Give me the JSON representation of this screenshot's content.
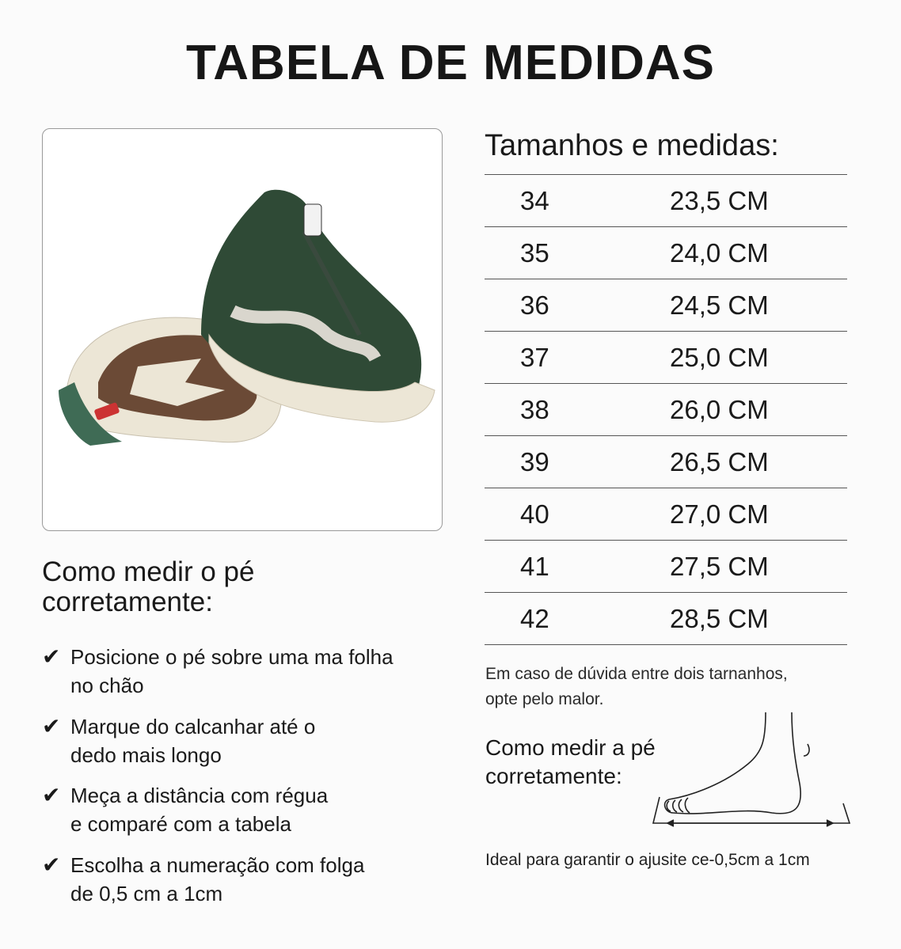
{
  "title": "TABELA DE MEDIDAS",
  "howto": {
    "title_line1": "Como medir o pé",
    "title_line2": "corretamente:",
    "steps": [
      {
        "line1": "Posicione o pé sobre uma ma folha",
        "line2": "no chão"
      },
      {
        "line1": "Marque do calcanhar até o",
        "line2": "dedo mais longo"
      },
      {
        "line1": "Meça a distância com régua",
        "line2": "e comparé com a tabela"
      },
      {
        "line1": "Escolha a numeração com folga",
        "line2": "de 0,5 cm a 1cm"
      }
    ],
    "check_icon": "check-icon"
  },
  "table": {
    "title": "Tamanhos e medidas:",
    "rows": [
      {
        "size": "34",
        "length": "23,5 CM"
      },
      {
        "size": "35",
        "length": "24,0 CM"
      },
      {
        "size": "36",
        "length": "24,5 CM"
      },
      {
        "size": "37",
        "length": "25,0 CM"
      },
      {
        "size": "38",
        "length": "26,0 CM"
      },
      {
        "size": "39",
        "length": "26,5 CM"
      },
      {
        "size": "40",
        "length": "27,0 CM"
      },
      {
        "size": "41",
        "length": "27,5 CM"
      },
      {
        "size": "42",
        "length": "28,5 CM"
      }
    ]
  },
  "note": {
    "line1": "Em caso de dúvida entre dois tarnanhos,",
    "line2": "opte pelo malor."
  },
  "foot_section": {
    "title_line1": "Como medir a pé",
    "title_line2": "corretamente:"
  },
  "ideal": "Ideal para garantir o ajusite ce-0,5cm a 1cm",
  "colors": {
    "shoe_green": "#2f4a36",
    "sole_cream": "#ece6d6",
    "outsole_brown": "#6b4a36"
  }
}
